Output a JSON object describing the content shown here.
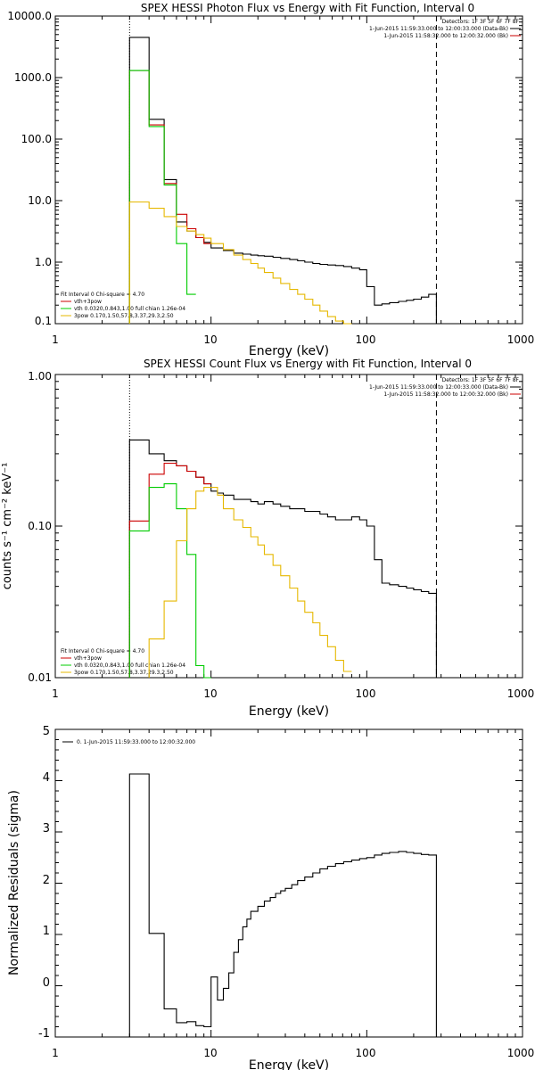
{
  "chart_data": [
    {
      "type": "line",
      "title": "SPEX HESSI Photon Flux vs Energy with Fit Function, Interval 0",
      "xlabel": "Energy (keV)",
      "ylabel": "",
      "xscale": "log",
      "yscale": "log",
      "xlim": [
        1,
        1000
      ],
      "ylim": [
        0.1,
        10000
      ],
      "x_ticks": [
        "1",
        "10",
        "100",
        "1000"
      ],
      "y_ticks": [
        "0.1",
        "1.0",
        "10.0",
        "100.0",
        "1000.0",
        "10000.0"
      ],
      "vlines": [
        {
          "x": 3.0,
          "style": "dotted",
          "color": "#000000"
        },
        {
          "x": 280,
          "style": "dashed",
          "color": "#000000"
        }
      ],
      "legend_topright": [
        {
          "text": "Detectors: 1F 3F 5F 6F 7F 8F",
          "color": ""
        },
        {
          "text": "1-Jun-2015 11:59:33.000 to 12:00:33.000 (Data-Bk)",
          "color": "#000000"
        },
        {
          "text": "1-Jun-2015 11:58:32.000 to 12:00:32.000 (Bk)",
          "color": "#cc0000"
        }
      ],
      "legend_bottomleft": [
        {
          "text": "Fit Interval 0   Chi-square = 4.70",
          "color": ""
        },
        {
          "text": "vth+3pow",
          "color": "#cc0000"
        },
        {
          "text": "vth 0.0320,0.843,1.00  full chian 1.26e-04",
          "color": "#00cc00"
        },
        {
          "text": "3pow 0.170,1.50,57.8,3.37,29.3,2.50",
          "color": "#e6b800"
        }
      ],
      "series": [
        {
          "color": "#000000",
          "edges": [
            3,
            4,
            5,
            6,
            7,
            8,
            9,
            10,
            12,
            14,
            16,
            18,
            20,
            22,
            25,
            28,
            32,
            36,
            40,
            45,
            50,
            56,
            63,
            71,
            80,
            90,
            100,
            112,
            125,
            140,
            160,
            180,
            200,
            224,
            250,
            280
          ],
          "values": [
            4500,
            210,
            22,
            4.5,
            3.2,
            2.5,
            2.1,
            1.7,
            1.55,
            1.4,
            1.35,
            1.3,
            1.27,
            1.25,
            1.2,
            1.15,
            1.1,
            1.05,
            1.0,
            0.95,
            0.92,
            0.9,
            0.88,
            0.85,
            0.8,
            0.75,
            0.4,
            0.2,
            0.21,
            0.22,
            0.23,
            0.24,
            0.25,
            0.27,
            0.3
          ]
        },
        {
          "color": "#cc0000",
          "edges": [
            3,
            4,
            5,
            6,
            7,
            8,
            9,
            10
          ],
          "values": [
            1300,
            170,
            19,
            6.0,
            3.5,
            2.5,
            2.0
          ]
        },
        {
          "color": "#00cc00",
          "edges": [
            3,
            4,
            5,
            6,
            7,
            8
          ],
          "values": [
            1300,
            160,
            18,
            2.0,
            0.3
          ]
        },
        {
          "color": "#e6b800",
          "edges": [
            3,
            4,
            5,
            6,
            7,
            8,
            9,
            10,
            12,
            14,
            16,
            18,
            20,
            22,
            25,
            28,
            32,
            36,
            40,
            45,
            50,
            56,
            63,
            71,
            80
          ],
          "values": [
            9.5,
            7.5,
            5.5,
            3.8,
            3.2,
            2.8,
            2.45,
            2.0,
            1.6,
            1.3,
            1.1,
            0.95,
            0.8,
            0.68,
            0.55,
            0.45,
            0.36,
            0.3,
            0.25,
            0.2,
            0.16,
            0.13,
            0.11,
            0.1
          ]
        }
      ]
    },
    {
      "type": "line",
      "title": "SPEX HESSI Count Flux vs Energy with Fit Function, Interval 0",
      "xlabel": "Energy (keV)",
      "ylabel": "counts s⁻¹ cm⁻² keV⁻¹",
      "xscale": "log",
      "yscale": "log",
      "xlim": [
        1,
        1000
      ],
      "ylim": [
        0.01,
        1.0
      ],
      "x_ticks": [
        "1",
        "10",
        "100",
        "1000"
      ],
      "y_ticks": [
        "0.01",
        "0.10",
        "1.00"
      ],
      "vlines": [
        {
          "x": 3.0,
          "style": "dotted",
          "color": "#000000"
        },
        {
          "x": 280,
          "style": "dashed",
          "color": "#000000"
        }
      ],
      "legend_topright": [
        {
          "text": "Detectors: 1F 3F 5F 6F 7F 8F",
          "color": ""
        },
        {
          "text": "1-Jun-2015 11:59:33.000 to 12:00:33.000 (Data-Bk)",
          "color": "#000000"
        },
        {
          "text": "1-Jun-2015 11:58:32.000 to 12:00:32.000 (Bk)",
          "color": "#cc0000"
        }
      ],
      "legend_bottomleft": [
        {
          "text": "Fit Interval 0   Chi-square = 4.70",
          "color": ""
        },
        {
          "text": "vth+3pow",
          "color": "#cc0000"
        },
        {
          "text": "vth 0.0320,0.843,1.00  full chian 1.26e-04",
          "color": "#00cc00"
        },
        {
          "text": "3pow 0.170,1.50,57.8,3.37,29.3,2.50",
          "color": "#e6b800"
        }
      ],
      "series": [
        {
          "color": "#000000",
          "edges": [
            3,
            4,
            5,
            6,
            7,
            8,
            9,
            10,
            11,
            12,
            14,
            16,
            18,
            20,
            22,
            25,
            28,
            32,
            36,
            40,
            45,
            50,
            56,
            63,
            71,
            80,
            90,
            100,
            112,
            125,
            140,
            160,
            180,
            200,
            224,
            250,
            280
          ],
          "values": [
            0.37,
            0.3,
            0.27,
            0.25,
            0.23,
            0.21,
            0.19,
            0.17,
            0.165,
            0.16,
            0.15,
            0.15,
            0.145,
            0.14,
            0.145,
            0.14,
            0.135,
            0.13,
            0.13,
            0.125,
            0.125,
            0.12,
            0.115,
            0.11,
            0.11,
            0.115,
            0.11,
            0.1,
            0.06,
            0.042,
            0.041,
            0.04,
            0.039,
            0.038,
            0.037,
            0.036
          ]
        },
        {
          "color": "#cc0000",
          "edges": [
            3,
            4,
            5,
            6,
            7,
            8,
            9,
            10
          ],
          "values": [
            0.108,
            0.22,
            0.26,
            0.25,
            0.23,
            0.21,
            0.19
          ]
        },
        {
          "color": "#00cc00",
          "edges": [
            3,
            4,
            5,
            6,
            7,
            8,
            9,
            10
          ],
          "values": [
            0.093,
            0.18,
            0.19,
            0.13,
            0.065,
            0.012,
            0.009
          ]
        },
        {
          "color": "#e6b800",
          "edges": [
            4,
            5,
            6,
            7,
            8,
            9,
            10,
            11,
            12,
            14,
            16,
            18,
            20,
            22,
            25,
            28,
            32,
            36,
            40,
            45,
            50,
            56,
            63,
            71,
            80
          ],
          "values": [
            0.018,
            0.032,
            0.08,
            0.13,
            0.17,
            0.18,
            0.18,
            0.16,
            0.13,
            0.11,
            0.098,
            0.085,
            0.075,
            0.065,
            0.055,
            0.047,
            0.039,
            0.032,
            0.027,
            0.023,
            0.019,
            0.016,
            0.013,
            0.011
          ]
        }
      ]
    },
    {
      "type": "line",
      "title": "",
      "xlabel": "Energy (keV)",
      "ylabel": "Normalized Residuals (sigma)",
      "xscale": "log",
      "yscale": "linear",
      "xlim": [
        1,
        1000
      ],
      "ylim": [
        -1.0,
        5.0
      ],
      "x_ticks": [
        "1",
        "10",
        "100",
        "1000"
      ],
      "y_ticks": [
        "-1",
        "0",
        "1",
        "2",
        "3",
        "4",
        "5"
      ],
      "legend_topleft": [
        {
          "text": "0.  1-Jun-2015 11:59:33.000 to 12:00:32.000",
          "color": "#000000"
        }
      ],
      "series": [
        {
          "color": "#000000",
          "edges": [
            3,
            4,
            5,
            6,
            7,
            8,
            9,
            10,
            11,
            12,
            13,
            14,
            15,
            16,
            17,
            18,
            20,
            22,
            24,
            26,
            28,
            30,
            33,
            36,
            40,
            45,
            50,
            56,
            63,
            71,
            80,
            90,
            100,
            112,
            125,
            140,
            160,
            180,
            200,
            224,
            250,
            280
          ],
          "values": [
            4.13,
            1.02,
            -0.45,
            -0.72,
            -0.7,
            -0.78,
            -0.8,
            0.17,
            -0.28,
            -0.05,
            0.25,
            0.65,
            0.9,
            1.15,
            1.3,
            1.45,
            1.55,
            1.65,
            1.72,
            1.8,
            1.85,
            1.9,
            1.97,
            2.05,
            2.12,
            2.2,
            2.28,
            2.33,
            2.38,
            2.42,
            2.45,
            2.48,
            2.5,
            2.55,
            2.58,
            2.6,
            2.62,
            2.6,
            2.58,
            2.56,
            2.55
          ]
        }
      ]
    }
  ]
}
